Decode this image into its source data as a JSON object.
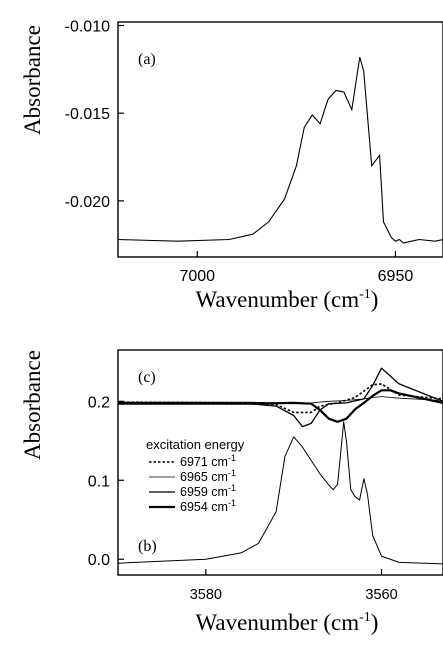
{
  "chart_data": [
    {
      "type": "line",
      "panel_label": "(a)",
      "xlabel": "Wavenumber (cm",
      "xlabel_sup": "-1",
      "xlabel_close": ")",
      "ylabel": "Absorbance",
      "xlim": [
        7020,
        6938
      ],
      "ylim": [
        -0.0232,
        -0.0098
      ],
      "x_ticks": [
        7000,
        6950
      ],
      "y_ticks": [
        -0.01,
        -0.015,
        -0.02
      ],
      "x_tick_labels": [
        "7000",
        "6950"
      ],
      "y_tick_labels": [
        "-0.010",
        "-0.015",
        "-0.020"
      ],
      "series": [
        {
          "x": [
            7020,
            7005,
            6992,
            6986,
            6982,
            6978,
            6975,
            6973,
            6971,
            6969,
            6967,
            6965,
            6963,
            6961,
            6959,
            6958,
            6956,
            6954,
            6953,
            6951,
            6950,
            6949,
            6948,
            6946,
            6944,
            6940,
            6938
          ],
          "y": [
            -0.0222,
            -0.0223,
            -0.0222,
            -0.0219,
            -0.0212,
            -0.0199,
            -0.018,
            -0.0158,
            -0.0151,
            -0.0156,
            -0.0142,
            -0.0137,
            -0.0138,
            -0.0148,
            -0.0118,
            -0.0126,
            -0.018,
            -0.0174,
            -0.0212,
            -0.0221,
            -0.0223,
            -0.0222,
            -0.0224,
            -0.0223,
            -0.0222,
            -0.0223,
            -0.0222
          ]
        }
      ]
    },
    {
      "type": "line",
      "panel_labels": [
        "(c)",
        "(b)"
      ],
      "xlabel": "Wavenumber (cm",
      "xlabel_sup": "-1",
      "xlabel_close": ")",
      "ylabel": "Absorbance",
      "xlim": [
        3590,
        3553
      ],
      "ylim": [
        -0.02,
        0.265
      ],
      "x_ticks": [
        3580,
        3560
      ],
      "y_ticks": [
        0.0,
        0.1,
        0.2
      ],
      "x_tick_labels": [
        "3580",
        "3560"
      ],
      "y_tick_labels": [
        "0.0",
        "0.1",
        "0.2"
      ],
      "legend_title": "excitation energy",
      "legend_placement": "center-left",
      "series": [
        {
          "name": "6971 cm",
          "name_sup": "-1",
          "x": [
            3590,
            3575,
            3572,
            3570,
            3568,
            3567,
            3565,
            3563,
            3562,
            3561,
            3560,
            3558,
            3553
          ],
          "y": [
            0.199,
            0.198,
            0.196,
            0.186,
            0.186,
            0.194,
            0.198,
            0.205,
            0.213,
            0.221,
            0.222,
            0.208,
            0.203
          ]
        },
        {
          "name": "6965 cm",
          "name_sup": "-1",
          "x": [
            3590,
            3575,
            3572,
            3570,
            3568,
            3566,
            3564,
            3562,
            3561,
            3560,
            3558,
            3553
          ],
          "y": [
            0.199,
            0.199,
            0.198,
            0.197,
            0.198,
            0.2,
            0.201,
            0.203,
            0.205,
            0.206,
            0.204,
            0.201
          ]
        },
        {
          "name": "6959 cm",
          "name_sup": "-1",
          "x": [
            3590,
            3575,
            3572,
            3570,
            3569,
            3568,
            3567,
            3566,
            3564,
            3562,
            3561,
            3560,
            3558,
            3553
          ],
          "y": [
            0.198,
            0.197,
            0.194,
            0.182,
            0.168,
            0.172,
            0.189,
            0.197,
            0.198,
            0.203,
            0.22,
            0.242,
            0.222,
            0.2
          ]
        },
        {
          "name": "6954 cm",
          "name_sup": "-1",
          "x": [
            3590,
            3575,
            3570,
            3568,
            3567,
            3566,
            3565,
            3564,
            3563,
            3562,
            3561,
            3560,
            3559,
            3558,
            3553
          ],
          "y": [
            0.197,
            0.197,
            0.198,
            0.197,
            0.189,
            0.178,
            0.174,
            0.178,
            0.19,
            0.198,
            0.207,
            0.214,
            0.214,
            0.21,
            0.198
          ]
        },
        {
          "x": [
            3590,
            3580,
            3576,
            3574,
            3572,
            3571,
            3570,
            3569,
            3568,
            3567,
            3566,
            3565.5,
            3565,
            3564.6,
            3564.3,
            3564,
            3563.5,
            3563,
            3562.5,
            3562,
            3561.6,
            3561,
            3560,
            3558,
            3553
          ],
          "y": [
            -0.005,
            0.0,
            0.008,
            0.02,
            0.06,
            0.13,
            0.155,
            0.142,
            0.125,
            0.108,
            0.094,
            0.088,
            0.095,
            0.14,
            0.174,
            0.15,
            0.088,
            0.079,
            0.075,
            0.102,
            0.082,
            0.03,
            0.004,
            -0.004,
            -0.006
          ]
        }
      ]
    }
  ]
}
